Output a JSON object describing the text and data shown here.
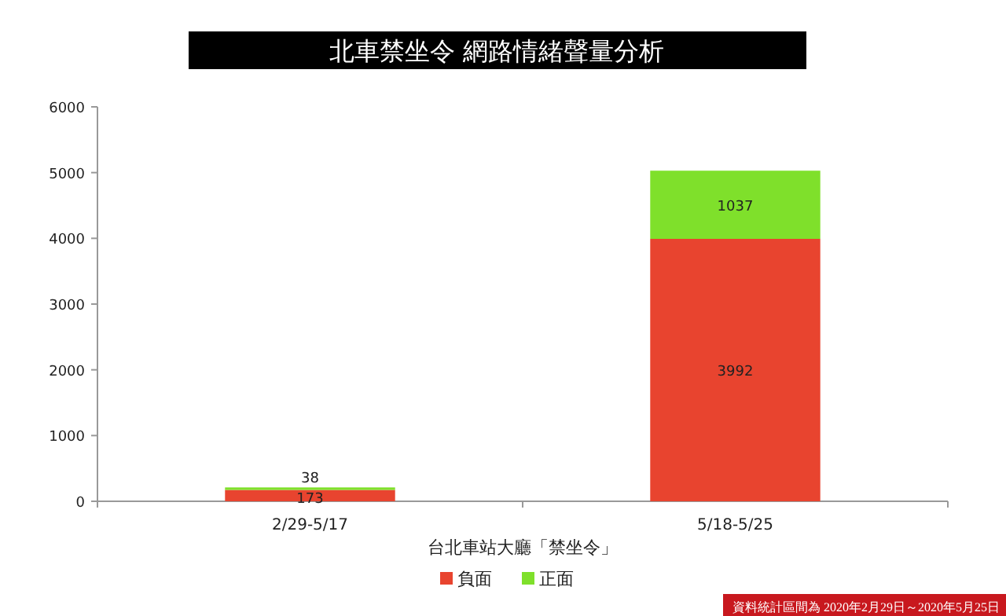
{
  "chart_data": {
    "type": "bar",
    "stacked": true,
    "title": "北車禁坐令 網路情緒聲量分析",
    "xlabel": "台北車站大廳「禁坐令」",
    "categories": [
      "2/29-5/17",
      "5/18-5/25"
    ],
    "series": [
      {
        "name": "負面",
        "color": "#e8442f",
        "values": [
          173,
          3992
        ]
      },
      {
        "name": "正面",
        "color": "#7fe02b",
        "values": [
          38,
          1037
        ]
      }
    ],
    "data_labels": true,
    "ylim": [
      0,
      6000
    ],
    "yticks": [
      0,
      1000,
      2000,
      3000,
      4000,
      5000,
      6000
    ],
    "legend": "bottom",
    "grid": false,
    "annotations": [
      "資料統計區間為 2020年2月29日～2020年5月25日"
    ]
  }
}
